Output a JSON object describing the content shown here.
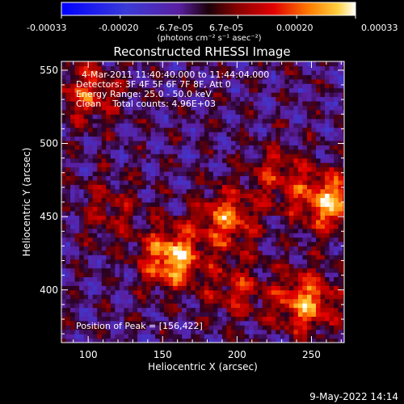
{
  "chart_data": {
    "type": "heatmap",
    "title": "Reconstructed RHESSI Image",
    "xlabel": "Heliocentric X (arcsec)",
    "ylabel": "Heliocentric Y (arcsec)",
    "xlim": [
      82,
      272
    ],
    "ylim": [
      364,
      556
    ],
    "xticks": [
      100,
      150,
      200,
      250
    ],
    "yticks": [
      400,
      450,
      500,
      550
    ],
    "colorbar": {
      "ticks": [
        "-0.00033",
        "-0.00020",
        "-6.7e-05",
        "6.7e-05",
        "0.00020",
        "0.00033"
      ],
      "range": [
        -0.00033,
        0.00033
      ],
      "unit_label": "(photons cm⁻² s⁻¹ asec⁻²)"
    },
    "annotations": {
      "time": "4-Mar-2011 11:40:40.000 to 11:44:04.000",
      "detectors": "Detectors: 3F 4F 5F 6F 7F 8F, Att 0",
      "energy": "Energy Range: 25.0 - 50.0 keV",
      "clean": "Clean    Total counts: 4.96E+03",
      "peak": "Position of Peak = [156,422]"
    },
    "footer_date": "9-May-2022 14:14",
    "bright_regions": [
      {
        "x": 156,
        "y": 422,
        "value": 0.00033
      },
      {
        "x": 262,
        "y": 460,
        "value": 0.0003
      },
      {
        "x": 246,
        "y": 392,
        "value": 0.00028
      },
      {
        "x": 192,
        "y": 448,
        "value": 0.00024
      },
      {
        "x": 100,
        "y": 535,
        "value": 0.0002
      },
      {
        "x": 228,
        "y": 478,
        "value": 0.00016
      },
      {
        "x": 200,
        "y": 400,
        "value": 0.00014
      },
      {
        "x": 115,
        "y": 455,
        "value": 0.00012
      }
    ]
  },
  "colors": {
    "negative_low": "#0000ff",
    "zero": "#5a1fa0",
    "mid": "#d40000",
    "high": "#ff9900",
    "peak": "#ffffff"
  }
}
